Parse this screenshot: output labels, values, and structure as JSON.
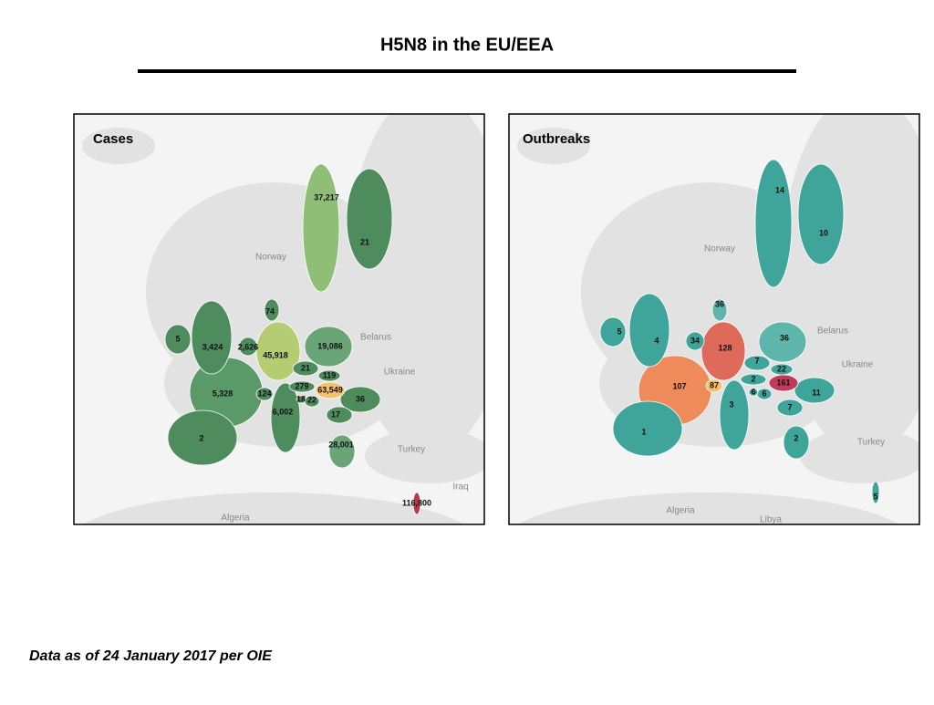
{
  "title": "H5N8 in the EU/EEA",
  "footnote": "Data as of 24 January 2017 per OIE",
  "maps": [
    {
      "title": "Cases",
      "places": [
        "Norway",
        "Belarus",
        "Ukraine",
        "Turkey",
        "Iraq",
        "Algeria"
      ],
      "regions": [
        {
          "label": "37,217"
        },
        {
          "label": "21"
        },
        {
          "label": "74"
        },
        {
          "label": "5"
        },
        {
          "label": "3,424"
        },
        {
          "label": "2,626"
        },
        {
          "label": "45,918"
        },
        {
          "label": "19,086"
        },
        {
          "label": "21"
        },
        {
          "label": "119"
        },
        {
          "label": "279"
        },
        {
          "label": "63,549"
        },
        {
          "label": "5,328"
        },
        {
          "label": "124"
        },
        {
          "label": "18"
        },
        {
          "label": "22"
        },
        {
          "label": "36"
        },
        {
          "label": "6,002"
        },
        {
          "label": "17"
        },
        {
          "label": "2"
        },
        {
          "label": "28,001"
        },
        {
          "label": "116,800"
        }
      ]
    },
    {
      "title": "Outbreaks",
      "places": [
        "Norway",
        "Belarus",
        "Ukraine",
        "Turkey",
        "Algeria",
        "Libya"
      ],
      "regions": [
        {
          "label": "14"
        },
        {
          "label": "10"
        },
        {
          "label": "36"
        },
        {
          "label": "5"
        },
        {
          "label": "4"
        },
        {
          "label": "34"
        },
        {
          "label": "128"
        },
        {
          "label": "36"
        },
        {
          "label": "7"
        },
        {
          "label": "22"
        },
        {
          "label": "2"
        },
        {
          "label": "161"
        },
        {
          "label": "107"
        },
        {
          "label": "87"
        },
        {
          "label": "6"
        },
        {
          "label": "6"
        },
        {
          "label": "11"
        },
        {
          "label": "3"
        },
        {
          "label": "7"
        },
        {
          "label": "1"
        },
        {
          "label": "2"
        },
        {
          "label": "5"
        }
      ]
    }
  ]
}
